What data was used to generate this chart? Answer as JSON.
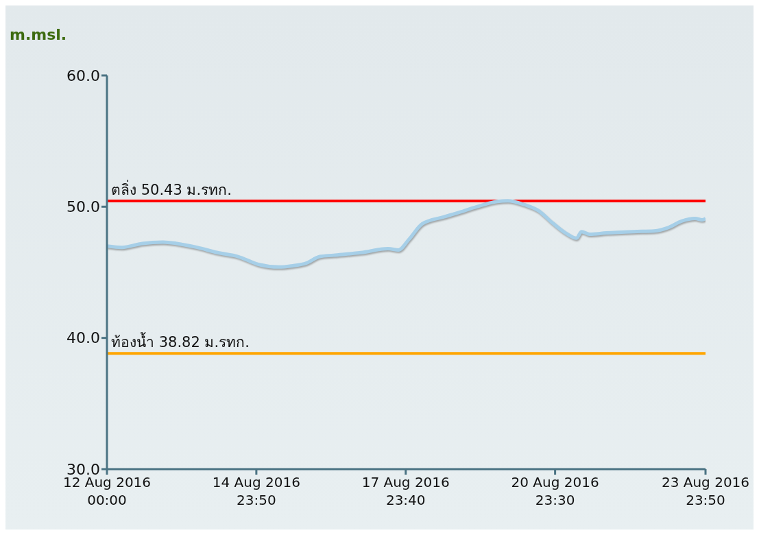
{
  "chart_data": {
    "type": "line",
    "ylabel": "m.msl.",
    "x": [
      "2016-08-12T00:00",
      "2016-08-12T07:10",
      "2016-08-12T17:00",
      "2016-08-13T03:00",
      "2016-08-13T09:30",
      "2016-08-13T19:20",
      "2016-08-14T05:10",
      "2016-08-14T15:00",
      "2016-08-15T00:50",
      "2016-08-15T10:40",
      "2016-08-15T17:20",
      "2016-08-15T23:50",
      "2016-08-16T06:20",
      "2016-08-16T13:00",
      "2016-08-17T02:10",
      "2016-08-17T15:10",
      "2016-08-17T20:10",
      "2016-08-18T01:10",
      "2016-08-18T07:40",
      "2016-08-18T17:30",
      "2016-08-19T00:00",
      "2016-08-19T09:50",
      "2016-08-19T19:40",
      "2016-08-20T00:40",
      "2016-08-20T08:50",
      "2016-08-20T15:30",
      "2016-08-20T22:00",
      "2016-08-21T04:30",
      "2016-08-21T09:50",
      "2016-08-21T12:10",
      "2016-08-21T16:00",
      "2016-08-22T00:10",
      "2016-08-22T13:20",
      "2016-08-22T23:10",
      "2016-08-23T05:50",
      "2016-08-23T12:20",
      "2016-08-23T18:50",
      "2016-08-23T22:10",
      "2016-08-23T23:50"
    ],
    "series": [
      {
        "color": "#a6cfe8",
        "values": [
          47.0,
          46.9,
          47.2,
          47.3,
          47.2,
          46.9,
          46.5,
          46.2,
          45.6,
          45.4,
          45.5,
          45.7,
          46.2,
          46.3,
          46.5,
          46.8,
          46.7,
          47.5,
          48.7,
          49.2,
          49.5,
          50.0,
          50.4,
          50.45,
          50.15,
          49.7,
          48.8,
          48.0,
          47.6,
          48.1,
          47.9,
          48.0,
          48.1,
          48.15,
          48.4,
          48.9,
          49.1,
          49.0,
          49.1
        ]
      }
    ],
    "xlim": [
      "2016-08-12T00:00",
      "2016-08-23T23:50"
    ],
    "xticks": [
      {
        "value": "2016-08-12T00:00",
        "label": "12 Aug 2016\n00:00"
      },
      {
        "value": "2016-08-14T23:50",
        "label": "14 Aug 2016\n23:50"
      },
      {
        "value": "2016-08-17T23:40",
        "label": "17 Aug 2016\n23:40"
      },
      {
        "value": "2016-08-20T23:30",
        "label": "20 Aug 2016\n23:30"
      },
      {
        "value": "2016-08-23T23:50",
        "label": "23 Aug 2016\n23:50"
      }
    ],
    "ylim": [
      30,
      60
    ],
    "yticks": [
      {
        "value": 30,
        "label": "30.0"
      },
      {
        "value": 40,
        "label": "40.0"
      },
      {
        "value": 50,
        "label": "50.0"
      },
      {
        "value": 60,
        "label": "60.0"
      }
    ],
    "ref_lines": [
      {
        "axis": "y",
        "value": 50.43,
        "label": "ตลิ่ง 50.43 ม.รทก.",
        "color": "#ff0000"
      },
      {
        "axis": "y",
        "value": 38.82,
        "label": "ท้องน้ำ 38.82 ม.รทก.",
        "color": "#ffa500"
      }
    ],
    "grid": false,
    "legend": false
  }
}
